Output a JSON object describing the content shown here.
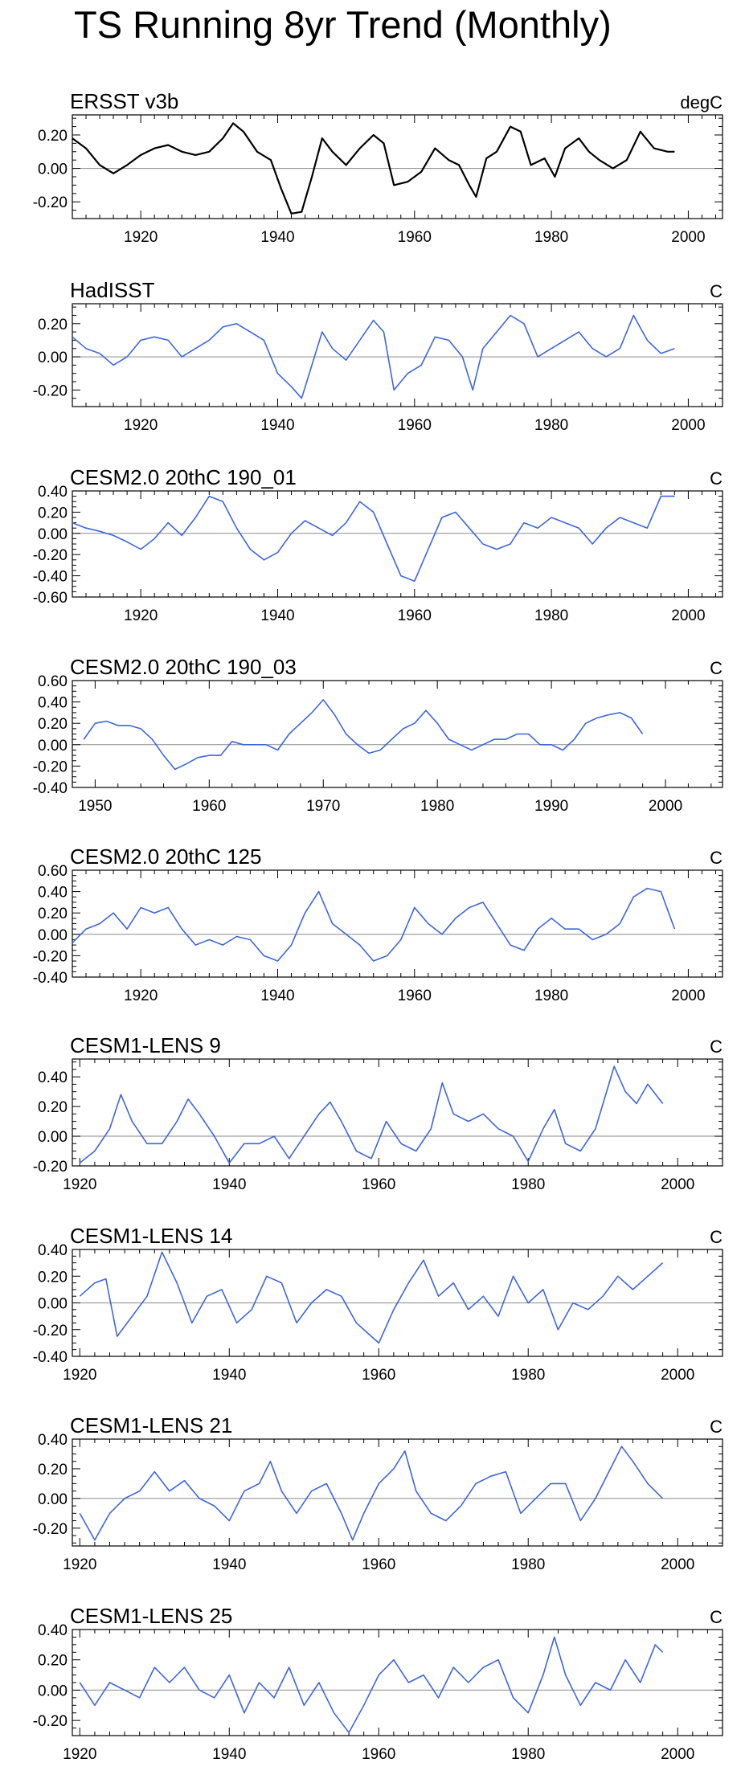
{
  "title": "TS Running 8yr Trend (Monthly)",
  "colors": {
    "observed": "#000000",
    "model": "#3d66dd",
    "zero_line": "#8a8a8a",
    "axis": "#000000"
  },
  "chart_data": [
    {
      "type": "line",
      "title": "ERSST v3b",
      "units": "degC",
      "xlim": [
        1910,
        2005
      ],
      "ylim": [
        -0.3,
        0.32
      ],
      "xticks": [
        1920,
        1940,
        1960,
        1980,
        2000
      ],
      "xtick_labels": [
        "1920",
        "1940",
        "1960",
        "1980",
        "2000"
      ],
      "yticks": [
        0.2,
        0.0,
        -0.2
      ],
      "ytick_labels": [
        "0.20",
        "0.00",
        "-0.20"
      ],
      "color_key": "observed",
      "x": [
        1910,
        1912,
        1914,
        1916,
        1918,
        1920,
        1922,
        1924,
        1926,
        1928,
        1930,
        1932,
        1933.5,
        1935,
        1937,
        1939,
        1940.5,
        1942,
        1943.5,
        1945,
        1946.5,
        1948,
        1950,
        1952,
        1954,
        1955.5,
        1957,
        1959,
        1961,
        1963,
        1965,
        1966.5,
        1968,
        1969,
        1970.5,
        1972,
        1974,
        1975.5,
        1977,
        1979,
        1980.5,
        1982,
        1984,
        1985.5,
        1987,
        1989,
        1991,
        1993,
        1995,
        1997,
        1998
      ],
      "values": [
        0.18,
        0.12,
        0.02,
        -0.03,
        0.02,
        0.08,
        0.12,
        0.14,
        0.1,
        0.08,
        0.1,
        0.18,
        0.27,
        0.22,
        0.1,
        0.05,
        -0.12,
        -0.27,
        -0.26,
        -0.05,
        0.18,
        0.1,
        0.02,
        0.12,
        0.2,
        0.15,
        -0.1,
        -0.08,
        -0.02,
        0.12,
        0.05,
        0.02,
        -0.1,
        -0.17,
        0.06,
        0.1,
        0.25,
        0.22,
        0.02,
        0.06,
        -0.05,
        0.12,
        0.18,
        0.1,
        0.05,
        0.0,
        0.05,
        0.22,
        0.12,
        0.1,
        0.1
      ]
    },
    {
      "type": "line",
      "title": "HadISST",
      "units": "C",
      "xlim": [
        1910,
        2005
      ],
      "ylim": [
        -0.3,
        0.32
      ],
      "xticks": [
        1920,
        1940,
        1960,
        1980,
        2000
      ],
      "xtick_labels": [
        "1920",
        "1940",
        "1960",
        "1980",
        "2000"
      ],
      "yticks": [
        0.2,
        0.0,
        -0.2
      ],
      "ytick_labels": [
        "0.20",
        "0.00",
        "-0.20"
      ],
      "color_key": "model",
      "x": [
        1910,
        1912,
        1914,
        1916,
        1918,
        1920,
        1922,
        1924,
        1926,
        1928,
        1930,
        1932,
        1934,
        1936,
        1938,
        1940,
        1942,
        1943.5,
        1945,
        1946.5,
        1948,
        1950,
        1952,
        1954,
        1955.5,
        1957,
        1959,
        1961,
        1963,
        1965,
        1967,
        1968.5,
        1970,
        1972,
        1974,
        1976,
        1978,
        1980,
        1982,
        1984,
        1986,
        1988,
        1990,
        1992,
        1994,
        1996,
        1998
      ],
      "values": [
        0.12,
        0.05,
        0.02,
        -0.05,
        0.0,
        0.1,
        0.12,
        0.1,
        0.0,
        0.05,
        0.1,
        0.18,
        0.2,
        0.15,
        0.1,
        -0.1,
        -0.18,
        -0.25,
        -0.05,
        0.15,
        0.05,
        -0.02,
        0.1,
        0.22,
        0.15,
        -0.2,
        -0.1,
        -0.05,
        0.12,
        0.1,
        0.0,
        -0.2,
        0.05,
        0.15,
        0.25,
        0.2,
        0.0,
        0.05,
        0.1,
        0.15,
        0.05,
        0.0,
        0.05,
        0.25,
        0.1,
        0.02,
        0.05
      ]
    },
    {
      "type": "line",
      "title": "CESM2.0 20thC 190_01",
      "units": "C",
      "xlim": [
        1910,
        2005
      ],
      "ylim": [
        -0.6,
        0.4
      ],
      "xticks": [
        1920,
        1940,
        1960,
        1980,
        2000
      ],
      "xtick_labels": [
        "1920",
        "1940",
        "1960",
        "1980",
        "2000"
      ],
      "yticks": [
        0.4,
        0.2,
        0.0,
        -0.2,
        -0.4,
        -0.6
      ],
      "ytick_labels": [
        "0.40",
        "0.20",
        "0.00",
        "-0.20",
        "-0.40",
        "-0.60"
      ],
      "color_key": "model",
      "x": [
        1910,
        1912,
        1914,
        1916,
        1918,
        1920,
        1922,
        1924,
        1926,
        1928,
        1930,
        1932,
        1934,
        1936,
        1938,
        1940,
        1942,
        1944,
        1946,
        1948,
        1950,
        1952,
        1954,
        1956,
        1958,
        1960,
        1962,
        1964,
        1966,
        1968,
        1970,
        1972,
        1974,
        1976,
        1978,
        1980,
        1982,
        1984,
        1986,
        1988,
        1990,
        1992,
        1994,
        1996,
        1998
      ],
      "values": [
        0.1,
        0.05,
        0.02,
        -0.02,
        -0.08,
        -0.15,
        -0.05,
        0.1,
        -0.02,
        0.15,
        0.35,
        0.3,
        0.05,
        -0.15,
        -0.25,
        -0.18,
        0.0,
        0.12,
        0.05,
        -0.02,
        0.1,
        0.3,
        0.2,
        -0.1,
        -0.4,
        -0.45,
        -0.15,
        0.15,
        0.2,
        0.05,
        -0.1,
        -0.15,
        -0.1,
        0.1,
        0.05,
        0.15,
        0.1,
        0.05,
        -0.1,
        0.05,
        0.15,
        0.1,
        0.05,
        0.35,
        0.35
      ]
    },
    {
      "type": "line",
      "title": "CESM2.0 20thC 190_03",
      "units": "C",
      "xlim": [
        1948,
        2005
      ],
      "ylim": [
        -0.4,
        0.6
      ],
      "xticks": [
        1950,
        1960,
        1970,
        1980,
        1990,
        2000
      ],
      "xtick_labels": [
        "1950",
        "1960",
        "1970",
        "1980",
        "1990",
        "2000"
      ],
      "yticks": [
        0.6,
        0.4,
        0.2,
        0.0,
        -0.2,
        -0.4
      ],
      "ytick_labels": [
        "0.60",
        "0.40",
        "0.20",
        "0.00",
        "-0.20",
        "-0.40"
      ],
      "color_key": "model",
      "x": [
        1949,
        1950,
        1951,
        1952,
        1953,
        1954,
        1955,
        1956,
        1957,
        1958,
        1959,
        1960,
        1961,
        1962,
        1963,
        1964,
        1965,
        1966,
        1967,
        1968,
        1969,
        1970,
        1971,
        1972,
        1973,
        1974,
        1975,
        1976,
        1977,
        1978,
        1979,
        1980,
        1981,
        1982,
        1983,
        1984,
        1985,
        1986,
        1987,
        1988,
        1989,
        1990,
        1991,
        1992,
        1993,
        1994,
        1995,
        1996,
        1997,
        1998
      ],
      "values": [
        0.05,
        0.2,
        0.22,
        0.18,
        0.18,
        0.15,
        0.05,
        -0.1,
        -0.23,
        -0.18,
        -0.12,
        -0.1,
        -0.1,
        0.03,
        0.0,
        0.0,
        0.0,
        -0.05,
        0.1,
        0.2,
        0.3,
        0.42,
        0.28,
        0.1,
        0.0,
        -0.08,
        -0.05,
        0.05,
        0.15,
        0.2,
        0.32,
        0.2,
        0.05,
        0.0,
        -0.05,
        0.0,
        0.05,
        0.05,
        0.1,
        0.1,
        0.0,
        0.0,
        -0.05,
        0.05,
        0.2,
        0.25,
        0.28,
        0.3,
        0.25,
        0.1
      ]
    },
    {
      "type": "line",
      "title": "CESM2.0 20thC 125",
      "units": "C",
      "xlim": [
        1910,
        2005
      ],
      "ylim": [
        -0.4,
        0.6
      ],
      "xticks": [
        1920,
        1940,
        1960,
        1980,
        2000
      ],
      "xtick_labels": [
        "1920",
        "1940",
        "1960",
        "1980",
        "2000"
      ],
      "yticks": [
        0.6,
        0.4,
        0.2,
        0.0,
        -0.2,
        -0.4
      ],
      "ytick_labels": [
        "0.60",
        "0.40",
        "0.20",
        "0.00",
        "-0.20",
        "-0.40"
      ],
      "color_key": "model",
      "x": [
        1910,
        1912,
        1914,
        1916,
        1918,
        1920,
        1922,
        1924,
        1926,
        1928,
        1930,
        1932,
        1934,
        1936,
        1938,
        1940,
        1942,
        1944,
        1946,
        1948,
        1950,
        1952,
        1954,
        1956,
        1958,
        1960,
        1962,
        1964,
        1966,
        1968,
        1970,
        1972,
        1974,
        1976,
        1978,
        1980,
        1982,
        1984,
        1986,
        1988,
        1990,
        1992,
        1994,
        1996,
        1998
      ],
      "values": [
        -0.08,
        0.05,
        0.1,
        0.2,
        0.05,
        0.25,
        0.2,
        0.25,
        0.05,
        -0.1,
        -0.05,
        -0.1,
        -0.02,
        -0.05,
        -0.2,
        -0.25,
        -0.1,
        0.2,
        0.4,
        0.1,
        0.0,
        -0.1,
        -0.25,
        -0.2,
        -0.05,
        0.25,
        0.1,
        0.0,
        0.15,
        0.25,
        0.3,
        0.1,
        -0.1,
        -0.15,
        0.05,
        0.15,
        0.05,
        0.05,
        -0.05,
        0.0,
        0.1,
        0.35,
        0.43,
        0.4,
        0.05
      ]
    },
    {
      "type": "line",
      "title": "CESM1-LENS 9",
      "units": "C",
      "xlim": [
        1919,
        2006
      ],
      "ylim": [
        -0.2,
        0.52
      ],
      "xticks": [
        1920,
        1940,
        1960,
        1980,
        2000
      ],
      "xtick_labels": [
        "1920",
        "1940",
        "1960",
        "1980",
        "2000"
      ],
      "yticks": [
        0.4,
        0.2,
        0.0,
        -0.2
      ],
      "ytick_labels": [
        "0.40",
        "0.20",
        "0.00",
        "-0.20"
      ],
      "color_key": "model",
      "x": [
        1920,
        1922,
        1924,
        1925.5,
        1927,
        1929,
        1931,
        1933,
        1934.5,
        1936,
        1938,
        1940,
        1942,
        1944,
        1946,
        1948,
        1950,
        1952,
        1953.5,
        1955,
        1957,
        1959,
        1961,
        1963,
        1965,
        1967,
        1968.5,
        1970,
        1972,
        1974,
        1976,
        1978,
        1980,
        1982,
        1983.5,
        1985,
        1987,
        1989,
        1991.5,
        1993,
        1994.5,
        1996,
        1998
      ],
      "values": [
        -0.18,
        -0.1,
        0.05,
        0.28,
        0.1,
        -0.05,
        -0.05,
        0.1,
        0.25,
        0.15,
        0.0,
        -0.18,
        -0.05,
        -0.05,
        0.0,
        -0.15,
        0.0,
        0.15,
        0.23,
        0.1,
        -0.1,
        -0.15,
        0.1,
        -0.05,
        -0.1,
        0.05,
        0.36,
        0.15,
        0.1,
        0.15,
        0.05,
        0.0,
        -0.17,
        0.05,
        0.18,
        -0.05,
        -0.1,
        0.05,
        0.47,
        0.3,
        0.22,
        0.35,
        0.22
      ]
    },
    {
      "type": "line",
      "title": "CESM1-LENS 14",
      "units": "C",
      "xlim": [
        1919,
        2006
      ],
      "ylim": [
        -0.4,
        0.4
      ],
      "xticks": [
        1920,
        1940,
        1960,
        1980,
        2000
      ],
      "xtick_labels": [
        "1920",
        "1940",
        "1960",
        "1980",
        "2000"
      ],
      "yticks": [
        0.4,
        0.2,
        0.0,
        -0.2,
        -0.4
      ],
      "ytick_labels": [
        "0.40",
        "0.20",
        "0.00",
        "-0.20",
        "-0.40"
      ],
      "color_key": "model",
      "x": [
        1920,
        1922,
        1923.5,
        1925,
        1927,
        1929,
        1931,
        1933,
        1935,
        1937,
        1939,
        1941,
        1943,
        1945,
        1947,
        1949,
        1951,
        1953,
        1955,
        1957,
        1959,
        1960,
        1962,
        1964,
        1966,
        1968,
        1970,
        1972,
        1974,
        1976,
        1978,
        1980,
        1982,
        1984,
        1986,
        1988,
        1990,
        1992,
        1994,
        1996,
        1998
      ],
      "values": [
        0.05,
        0.15,
        0.18,
        -0.25,
        -0.1,
        0.05,
        0.38,
        0.15,
        -0.15,
        0.05,
        0.1,
        -0.15,
        -0.05,
        0.2,
        0.15,
        -0.15,
        0.0,
        0.1,
        0.05,
        -0.15,
        -0.25,
        -0.3,
        -0.05,
        0.15,
        0.32,
        0.05,
        0.15,
        -0.05,
        0.05,
        -0.1,
        0.2,
        0.0,
        0.1,
        -0.2,
        0.0,
        -0.05,
        0.05,
        0.2,
        0.1,
        0.2,
        0.3
      ]
    },
    {
      "type": "line",
      "title": "CESM1-LENS 21",
      "units": "C",
      "xlim": [
        1919,
        2006
      ],
      "ylim": [
        -0.32,
        0.4
      ],
      "xticks": [
        1920,
        1940,
        1960,
        1980,
        2000
      ],
      "xtick_labels": [
        "1920",
        "1940",
        "1960",
        "1980",
        "2000"
      ],
      "yticks": [
        0.4,
        0.2,
        0.0,
        -0.2
      ],
      "ytick_labels": [
        "0.40",
        "0.20",
        "0.00",
        "-0.20"
      ],
      "color_key": "model",
      "x": [
        1920,
        1922,
        1924,
        1926,
        1928,
        1930,
        1932,
        1934,
        1936,
        1938,
        1940,
        1942,
        1944,
        1945.5,
        1947,
        1949,
        1951,
        1953,
        1955,
        1956.5,
        1958,
        1960,
        1962,
        1963.5,
        1965,
        1967,
        1969,
        1971,
        1973,
        1975,
        1977,
        1979,
        1981,
        1983,
        1985,
        1987,
        1989,
        1991,
        1992.5,
        1994,
        1996,
        1998
      ],
      "values": [
        -0.1,
        -0.28,
        -0.1,
        0.0,
        0.05,
        0.18,
        0.05,
        0.12,
        0.0,
        -0.05,
        -0.15,
        0.05,
        0.1,
        0.25,
        0.05,
        -0.1,
        0.05,
        0.1,
        -0.1,
        -0.28,
        -0.1,
        0.1,
        0.2,
        0.32,
        0.05,
        -0.1,
        -0.15,
        -0.05,
        0.1,
        0.15,
        0.18,
        -0.1,
        0.0,
        0.1,
        0.1,
        -0.15,
        0.0,
        0.2,
        0.35,
        0.25,
        0.1,
        0.0
      ]
    },
    {
      "type": "line",
      "title": "CESM1-LENS 25",
      "units": "C",
      "xlim": [
        1919,
        2006
      ],
      "ylim": [
        -0.3,
        0.4
      ],
      "xticks": [
        1920,
        1940,
        1960,
        1980,
        2000
      ],
      "xtick_labels": [
        "1920",
        "1940",
        "1960",
        "1980",
        "2000"
      ],
      "yticks": [
        0.4,
        0.2,
        0.0,
        -0.2
      ],
      "ytick_labels": [
        "0.40",
        "0.20",
        "0.00",
        "-0.20"
      ],
      "color_key": "model",
      "x": [
        1920,
        1922,
        1924,
        1926,
        1928,
        1930,
        1932,
        1934,
        1936,
        1938,
        1940,
        1942,
        1944,
        1946,
        1948,
        1950,
        1952,
        1954,
        1956,
        1958,
        1960,
        1962,
        1964,
        1966,
        1968,
        1970,
        1972,
        1974,
        1976,
        1978,
        1980,
        1982,
        1983.5,
        1985,
        1987,
        1989,
        1991,
        1993,
        1995,
        1997,
        1998
      ],
      "values": [
        0.05,
        -0.1,
        0.05,
        0.0,
        -0.05,
        0.15,
        0.05,
        0.15,
        0.0,
        -0.05,
        0.1,
        -0.15,
        0.05,
        -0.05,
        0.15,
        -0.1,
        0.05,
        -0.15,
        -0.28,
        -0.1,
        0.1,
        0.2,
        0.05,
        0.1,
        -0.05,
        0.15,
        0.05,
        0.15,
        0.2,
        -0.05,
        -0.15,
        0.1,
        0.35,
        0.1,
        -0.1,
        0.05,
        0.0,
        0.2,
        0.05,
        0.3,
        0.25
      ]
    }
  ]
}
